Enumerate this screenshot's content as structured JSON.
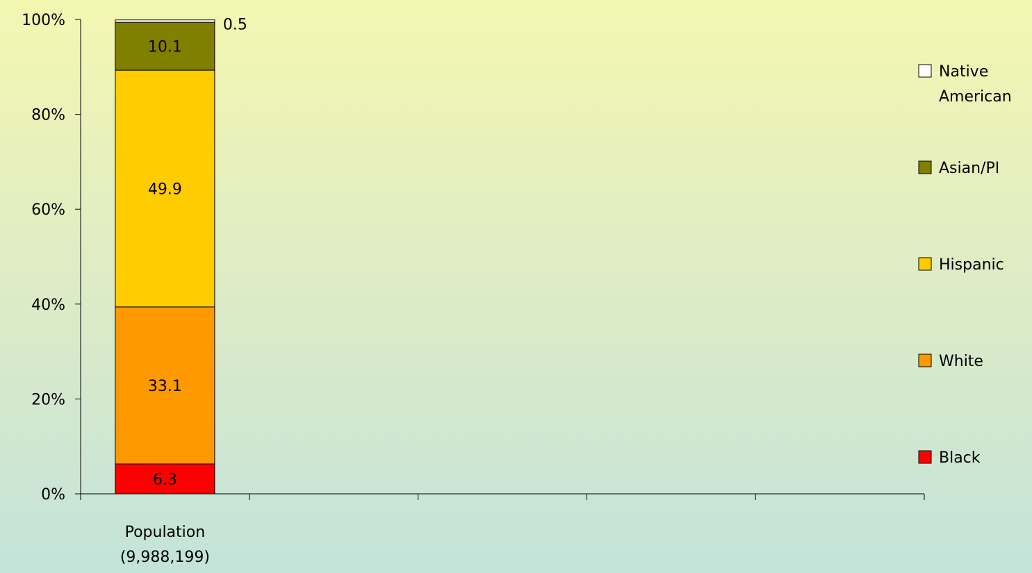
{
  "chart_data": {
    "type": "bar",
    "stacked": true,
    "categories": [
      "Population\n(9,988,199)"
    ],
    "series": [
      {
        "name": "Black",
        "values": [
          6.3
        ],
        "color": "#ff0000",
        "label": "6.3"
      },
      {
        "name": "White",
        "values": [
          33.1
        ],
        "color": "#ff9900",
        "label": "33.1"
      },
      {
        "name": "Hispanic",
        "values": [
          49.9
        ],
        "color": "#ffcc00",
        "label": "49.9"
      },
      {
        "name": "Asian/PI",
        "values": [
          10.1
        ],
        "color": "#808000",
        "label": "10.1"
      },
      {
        "name": "Native American",
        "values": [
          0.5
        ],
        "color": "#ffffff",
        "label": "0.5"
      }
    ],
    "y_ticks": [
      "0%",
      "20%",
      "40%",
      "60%",
      "80%",
      "100%"
    ],
    "ylim": [
      0,
      100
    ],
    "category_slots": 5,
    "legend_position": "right",
    "grid": false,
    "title": "",
    "xlabel": "",
    "ylabel": ""
  }
}
